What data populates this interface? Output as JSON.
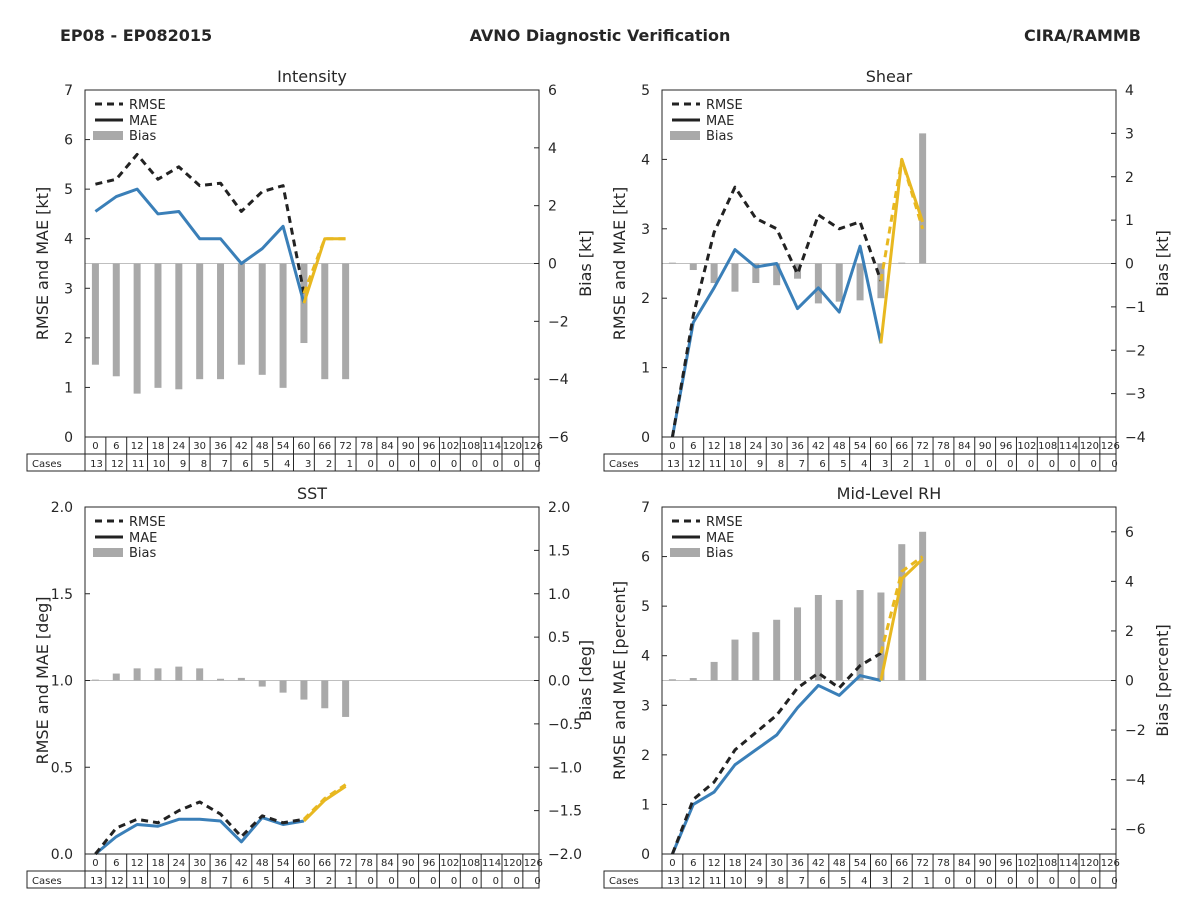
{
  "header": {
    "left": "EP08 - EP082015",
    "center": "AVNO Diagnostic Verification",
    "right": "CIRA/RAMMB"
  },
  "colors": {
    "rmse": "#222222",
    "mae": "#3a7fb8",
    "late": "#e8b820",
    "bias": "#a9a9a9",
    "zero": "#bfbfbf",
    "frame": "#262626"
  },
  "chart_data": [
    {
      "type": "line",
      "title": "Intensity",
      "ylabel": "RMSE and MAE [kt]",
      "ylabel2": "Bias [kt]",
      "ylim": [
        0,
        7
      ],
      "yticks": [
        "0",
        "1",
        "2",
        "3",
        "4",
        "5",
        "6",
        "7"
      ],
      "y2lim": [
        -6,
        6
      ],
      "y2ticks": [
        "−6",
        "−4",
        "−2",
        "0",
        "2",
        "4",
        "6"
      ],
      "legend": [
        "RMSE",
        "MAE",
        "Bias"
      ],
      "x": [
        0,
        6,
        12,
        18,
        24,
        30,
        36,
        42,
        48,
        54,
        60,
        66,
        72
      ],
      "rmse": [
        5.1,
        5.2,
        5.7,
        5.2,
        5.45,
        5.07,
        5.12,
        4.55,
        4.95,
        5.07,
        2.9,
        4.0,
        4.0
      ],
      "mae": [
        4.55,
        4.85,
        5.0,
        4.5,
        4.55,
        4.0,
        4.0,
        3.5,
        3.8,
        4.25,
        2.7,
        4.0,
        4.0
      ],
      "bias": [
        -3.5,
        -3.9,
        -4.5,
        -4.3,
        -4.35,
        -4.0,
        -4.0,
        -3.5,
        -3.85,
        -4.3,
        -2.75,
        -4.0,
        -4.0
      ],
      "table_hours": [
        "0",
        "6",
        "12",
        "18",
        "24",
        "30",
        "36",
        "42",
        "48",
        "54",
        "60",
        "66",
        "72",
        "78",
        "84",
        "90",
        "96",
        "102",
        "108",
        "114",
        "120",
        "126"
      ],
      "cases_label": "Cases",
      "cases": [
        "13",
        "12",
        "11",
        "10",
        "9",
        "8",
        "7",
        "6",
        "5",
        "4",
        "3",
        "2",
        "1",
        "0",
        "0",
        "0",
        "0",
        "0",
        "0",
        "0",
        "0",
        "0"
      ]
    },
    {
      "type": "line",
      "title": "Shear",
      "ylabel": "RMSE and MAE [kt]",
      "ylabel2": "Bias [kt]",
      "ylim": [
        0,
        5
      ],
      "yticks": [
        "0",
        "1",
        "2",
        "3",
        "4",
        "5"
      ],
      "y2lim": [
        -4,
        4
      ],
      "y2ticks": [
        "−4",
        "−3",
        "−2",
        "−1",
        "0",
        "1",
        "2",
        "3",
        "4"
      ],
      "legend": [
        "RMSE",
        "MAE",
        "Bias"
      ],
      "x": [
        0,
        6,
        12,
        18,
        24,
        30,
        36,
        42,
        48,
        54,
        60,
        66,
        72
      ],
      "rmse": [
        0.0,
        1.75,
        2.95,
        3.6,
        3.15,
        3.0,
        2.35,
        3.2,
        3.0,
        3.1,
        2.25,
        4.0,
        3.0
      ],
      "mae": [
        0.0,
        1.65,
        2.15,
        2.7,
        2.45,
        2.5,
        1.85,
        2.15,
        1.8,
        2.75,
        1.35,
        4.0,
        3.1
      ],
      "bias": [
        0.02,
        -0.15,
        -0.45,
        -0.65,
        -0.45,
        -0.5,
        -0.35,
        -0.92,
        -0.88,
        -0.85,
        -0.8,
        0.02,
        3.0
      ],
      "table_hours": [
        "0",
        "6",
        "12",
        "18",
        "24",
        "30",
        "36",
        "42",
        "48",
        "54",
        "60",
        "66",
        "72",
        "78",
        "84",
        "90",
        "96",
        "102",
        "108",
        "114",
        "120",
        "126"
      ],
      "cases_label": "Cases",
      "cases": [
        "13",
        "12",
        "11",
        "10",
        "9",
        "8",
        "7",
        "6",
        "5",
        "4",
        "3",
        "2",
        "1",
        "0",
        "0",
        "0",
        "0",
        "0",
        "0",
        "0",
        "0",
        "0"
      ]
    },
    {
      "type": "line",
      "title": "SST",
      "ylabel": "RMSE and MAE [deg]",
      "ylabel2": "Bias [deg]",
      "ylim": [
        0,
        2
      ],
      "yticks": [
        "0.0",
        "0.5",
        "1.0",
        "1.5",
        "2.0"
      ],
      "y2lim": [
        -2,
        2
      ],
      "y2ticks": [
        "−2.0",
        "−1.5",
        "−1.0",
        "−0.5",
        "0.0",
        "0.5",
        "1.0",
        "1.5",
        "2.0"
      ],
      "legend": [
        "RMSE",
        "MAE",
        "Bias"
      ],
      "x": [
        0,
        6,
        12,
        18,
        24,
        30,
        36,
        42,
        48,
        54,
        60,
        66,
        72
      ],
      "rmse": [
        0.0,
        0.15,
        0.2,
        0.18,
        0.25,
        0.3,
        0.23,
        0.1,
        0.22,
        0.18,
        0.2,
        0.32,
        0.4
      ],
      "mae": [
        0.0,
        0.1,
        0.17,
        0.16,
        0.2,
        0.2,
        0.19,
        0.07,
        0.21,
        0.17,
        0.19,
        0.31,
        0.39
      ],
      "bias": [
        0.01,
        0.08,
        0.14,
        0.14,
        0.16,
        0.14,
        0.02,
        0.03,
        -0.07,
        -0.14,
        -0.22,
        -0.32,
        -0.42
      ],
      "table_hours": [
        "0",
        "6",
        "12",
        "18",
        "24",
        "30",
        "36",
        "42",
        "48",
        "54",
        "60",
        "66",
        "72",
        "78",
        "84",
        "90",
        "96",
        "102",
        "108",
        "114",
        "120",
        "126"
      ],
      "cases_label": "Cases",
      "cases": [
        "13",
        "12",
        "11",
        "10",
        "9",
        "8",
        "7",
        "6",
        "5",
        "4",
        "3",
        "2",
        "1",
        "0",
        "0",
        "0",
        "0",
        "0",
        "0",
        "0",
        "0",
        "0"
      ]
    },
    {
      "type": "line",
      "title": "Mid-Level RH",
      "ylabel": "RMSE and MAE [percent]",
      "ylabel2": "Bias [percent]",
      "ylim": [
        0,
        7
      ],
      "yticks": [
        "0",
        "1",
        "2",
        "3",
        "4",
        "5",
        "6",
        "7"
      ],
      "y2lim": [
        -7,
        7
      ],
      "y2ticks": [
        "−6",
        "−4",
        "−2",
        "0",
        "2",
        "4",
        "6"
      ],
      "legend": [
        "RMSE",
        "MAE",
        "Bias"
      ],
      "x": [
        0,
        6,
        12,
        18,
        24,
        30,
        36,
        42,
        48,
        54,
        60,
        66,
        72
      ],
      "rmse": [
        0.0,
        1.1,
        1.45,
        2.1,
        2.45,
        2.8,
        3.35,
        3.65,
        3.35,
        3.8,
        4.05,
        5.7,
        6.0
      ],
      "mae": [
        0.0,
        1.0,
        1.25,
        1.8,
        2.1,
        2.4,
        2.95,
        3.4,
        3.2,
        3.6,
        3.5,
        5.55,
        5.95
      ],
      "bias": [
        0.05,
        0.1,
        0.75,
        1.65,
        1.95,
        2.45,
        2.95,
        3.45,
        3.25,
        3.65,
        3.55,
        5.5,
        6.0
      ],
      "table_hours": [
        "0",
        "6",
        "12",
        "18",
        "24",
        "30",
        "36",
        "42",
        "48",
        "54",
        "60",
        "66",
        "72",
        "78",
        "84",
        "90",
        "96",
        "102",
        "108",
        "114",
        "120",
        "126"
      ],
      "cases_label": "Cases",
      "cases": [
        "13",
        "12",
        "11",
        "10",
        "9",
        "8",
        "7",
        "6",
        "5",
        "4",
        "3",
        "2",
        "1",
        "0",
        "0",
        "0",
        "0",
        "0",
        "0",
        "0",
        "0",
        "0"
      ]
    }
  ]
}
